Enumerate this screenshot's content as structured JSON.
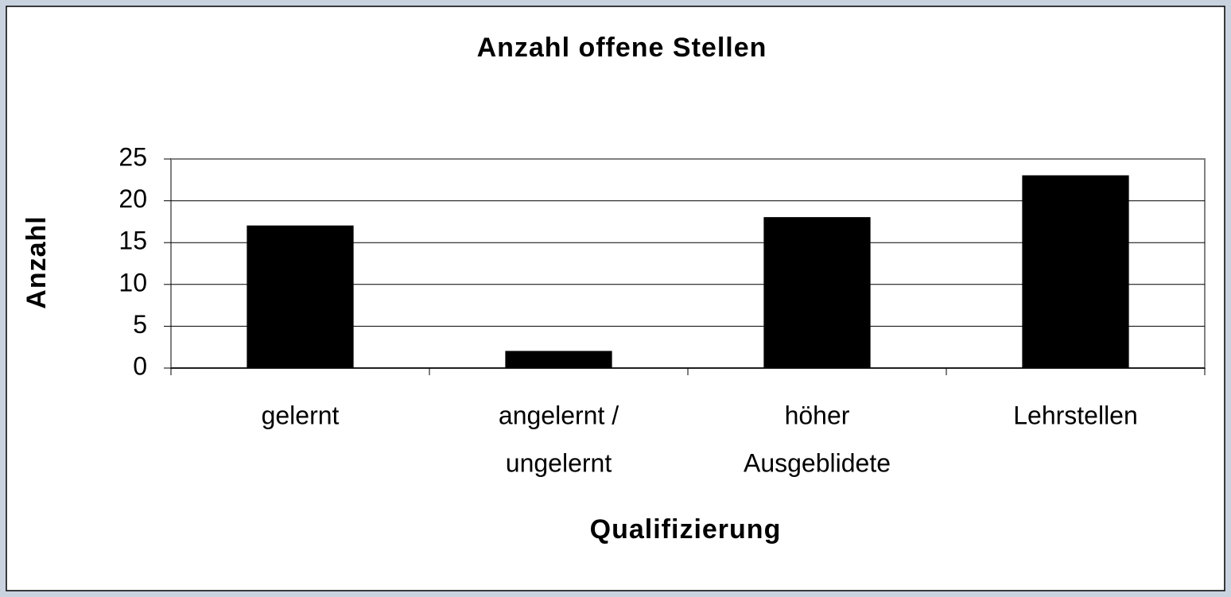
{
  "chart_data": {
    "type": "bar",
    "title": "Anzahl offene Stellen",
    "y_label": "Anzahl",
    "x_label": "Qualifizierung",
    "categories": [
      [
        "gelernt"
      ],
      [
        "angelernt /",
        "ungelernt"
      ],
      [
        "höher",
        "Ausgeblidete"
      ],
      [
        "Lehrstellen"
      ]
    ],
    "values": [
      17,
      2,
      18,
      23
    ],
    "color": "#000000",
    "ylim": [
      0,
      25
    ],
    "yticks": [
      0,
      5,
      10,
      15,
      20,
      25
    ],
    "grid": true
  }
}
